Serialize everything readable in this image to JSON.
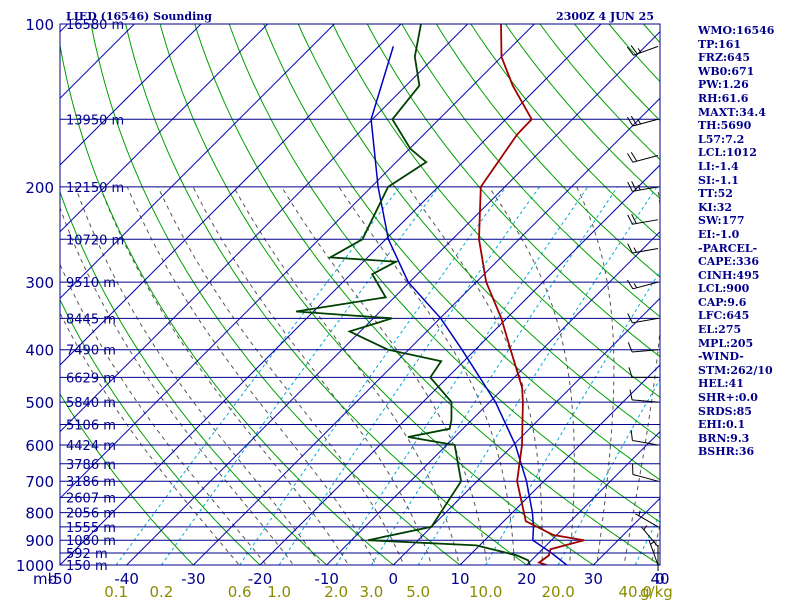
{
  "title_left": "LIED (16546) Sounding",
  "title_right": "2300Z  4 JUN 25",
  "pressure_unit_label": "mb",
  "mixing_ratio_unit": "g/kg",
  "colors": {
    "frame": "#00008b",
    "isobar": "#00008b",
    "isotherm": "#0000b0",
    "dry_adiabat": "#00a000",
    "moist_adiabat": "#555555",
    "mixing_ratio": "#00a8d8",
    "temperature": "#a00000",
    "dewpoint": "#004000",
    "parcel": "#0000c0",
    "wind": "#000000"
  },
  "indices": [
    "WMO:16546",
    "TP:161",
    "FRZ:645",
    "WB0:671",
    "PW:1.26",
    "RH:61.6",
    "MAXT:34.4",
    "TH:5690",
    "L57:7.2",
    "LCL:1012",
    "LI:-1.4",
    "SI:-1.1",
    "TT:52",
    "KI:32",
    "SW:177",
    "EI:-1.0",
    "-PARCEL-",
    "CAPE:336",
    "CINH:495",
    "LCL:900",
    "CAP:9.6",
    "LFC:645",
    "EL:275",
    "MPL:205",
    "-WIND-",
    "STM:262/10",
    "HEL:41",
    "SHR+:0.0",
    "SRDS:85",
    "EHI:0.1",
    "BRN:9.3",
    "BSHR:36"
  ],
  "chart_data": {
    "type": "line",
    "pressure_labels": [
      "100",
      "200",
      "300",
      "400",
      "500",
      "600",
      "700",
      "800",
      "900",
      "1000"
    ],
    "pressure_levels": [
      100,
      200,
      300,
      400,
      500,
      600,
      700,
      800,
      900,
      1000
    ],
    "height_levels": [
      {
        "p": 100,
        "h": "16580 m"
      },
      {
        "p": 150,
        "h": "13950 m"
      },
      {
        "p": 200,
        "h": "12150 m"
      },
      {
        "p": 250,
        "h": "10720 m"
      },
      {
        "p": 300,
        "h": "9510 m"
      },
      {
        "p": 350,
        "h": "8445 m"
      },
      {
        "p": 400,
        "h": "7490 m"
      },
      {
        "p": 450,
        "h": "6629 m"
      },
      {
        "p": 500,
        "h": "5840 m"
      },
      {
        "p": 550,
        "h": "5106 m"
      },
      {
        "p": 600,
        "h": "4424 m"
      },
      {
        "p": 650,
        "h": "3786 m"
      },
      {
        "p": 700,
        "h": "3186 m"
      },
      {
        "p": 750,
        "h": "2607 m"
      },
      {
        "p": 800,
        "h": "2056 m"
      },
      {
        "p": 850,
        "h": "1555 m"
      },
      {
        "p": 900,
        "h": "1080 m"
      },
      {
        "p": 950,
        "h": "592 m"
      },
      {
        "p": 1000,
        "h": "150 m"
      }
    ],
    "temperature_labels": [
      "-50",
      "-40",
      "-30",
      "-20",
      "-10",
      "0",
      "10",
      "20",
      "30",
      "40",
      "0"
    ],
    "mixing_ratio_labels": [
      "0.1",
      "0.2",
      "0.6",
      "1.0",
      "2.0",
      "3.0",
      "5.0",
      "10.0",
      "20.0",
      "40.0"
    ],
    "mixing_ratio_values": [
      0.1,
      0.2,
      0.6,
      1.0,
      2.0,
      3.0,
      5.0,
      10.0,
      20.0,
      40.0
    ],
    "temperature_profile": [
      {
        "p": 1000,
        "t": 23
      },
      {
        "p": 990,
        "t": 21.5
      },
      {
        "p": 960,
        "t": 21.9
      },
      {
        "p": 935,
        "t": 21.2
      },
      {
        "p": 900,
        "t": 24.9
      },
      {
        "p": 880,
        "t": 19.5
      },
      {
        "p": 830,
        "t": 13.3
      },
      {
        "p": 700,
        "t": 6.0
      },
      {
        "p": 600,
        "t": 1.3
      },
      {
        "p": 500,
        "t": -5.0
      },
      {
        "p": 470,
        "t": -7.3
      },
      {
        "p": 400,
        "t": -14.7
      },
      {
        "p": 350,
        "t": -20.8
      },
      {
        "p": 300,
        "t": -28.5
      },
      {
        "p": 250,
        "t": -36.0
      },
      {
        "p": 200,
        "t": -43.6
      },
      {
        "p": 160,
        "t": -46.0
      },
      {
        "p": 150,
        "t": -46.1
      },
      {
        "p": 130,
        "t": -54.0
      },
      {
        "p": 115,
        "t": -60.0
      },
      {
        "p": 100,
        "t": -65.0
      }
    ],
    "dewpoint_profile": [
      {
        "p": 1000,
        "td": 20.5
      },
      {
        "p": 980,
        "td": 19.5
      },
      {
        "p": 960,
        "td": 17.1
      },
      {
        "p": 920,
        "td": 9.5
      },
      {
        "p": 900,
        "td": -7.5
      },
      {
        "p": 850,
        "td": 0.0
      },
      {
        "p": 700,
        "td": -2.4
      },
      {
        "p": 600,
        "td": -8.8
      },
      {
        "p": 580,
        "td": -17.0
      },
      {
        "p": 560,
        "td": -12.0
      },
      {
        "p": 540,
        "td": -13.0
      },
      {
        "p": 500,
        "td": -15.7
      },
      {
        "p": 450,
        "td": -22.6
      },
      {
        "p": 420,
        "td": -23.4
      },
      {
        "p": 400,
        "td": -33.1
      },
      {
        "p": 370,
        "td": -41.6
      },
      {
        "p": 350,
        "td": -37.2
      },
      {
        "p": 340,
        "td": -52.6
      },
      {
        "p": 320,
        "td": -41.3
      },
      {
        "p": 290,
        "td": -46.8
      },
      {
        "p": 275,
        "td": -45.1
      },
      {
        "p": 270,
        "td": -55.6
      },
      {
        "p": 250,
        "td": -53.5
      },
      {
        "p": 200,
        "td": -57.5
      },
      {
        "p": 180,
        "td": -55.5
      },
      {
        "p": 170,
        "td": -59.9
      },
      {
        "p": 150,
        "td": -67.0
      },
      {
        "p": 130,
        "td": -68.0
      },
      {
        "p": 115,
        "td": -73.0
      },
      {
        "p": 100,
        "td": -77.0
      }
    ],
    "parcel_profile": [
      {
        "p": 1000,
        "t": 26.0
      },
      {
        "p": 950,
        "t": 21.9
      },
      {
        "p": 900,
        "t": 17.2
      },
      {
        "p": 850,
        "t": 15.3
      },
      {
        "p": 800,
        "t": 13.0
      },
      {
        "p": 700,
        "t": 7.4
      },
      {
        "p": 600,
        "t": 0.3
      },
      {
        "p": 500,
        "t": -9.1
      },
      {
        "p": 400,
        "t": -22.0
      },
      {
        "p": 350,
        "t": -29.9
      },
      {
        "p": 300,
        "t": -40.2
      },
      {
        "p": 250,
        "t": -49.6
      },
      {
        "p": 200,
        "t": -59.0
      },
      {
        "p": 150,
        "t": -70.2
      },
      {
        "p": 110,
        "t": -77.8
      }
    ],
    "winds": [
      {
        "p": 110,
        "dir": 250,
        "spd": 25
      },
      {
        "p": 150,
        "dir": 255,
        "spd": 25
      },
      {
        "p": 175,
        "dir": 255,
        "spd": 20
      },
      {
        "p": 200,
        "dir": 260,
        "spd": 25
      },
      {
        "p": 230,
        "dir": 260,
        "spd": 20
      },
      {
        "p": 260,
        "dir": 260,
        "spd": 15
      },
      {
        "p": 300,
        "dir": 255,
        "spd": 15
      },
      {
        "p": 350,
        "dir": 260,
        "spd": 10
      },
      {
        "p": 400,
        "dir": 265,
        "spd": 10
      },
      {
        "p": 450,
        "dir": 270,
        "spd": 10
      },
      {
        "p": 500,
        "dir": 275,
        "spd": 10
      },
      {
        "p": 600,
        "dir": 280,
        "spd": 10
      },
      {
        "p": 700,
        "dir": 285,
        "spd": 10
      },
      {
        "p": 850,
        "dir": 300,
        "spd": 5
      },
      {
        "p": 925,
        "dir": 320,
        "spd": 5
      },
      {
        "p": 1000,
        "dir": 340,
        "spd": 5
      }
    ],
    "x_range_temp_at_1000": [
      -50,
      40
    ],
    "y_range_pressure": [
      1000,
      100
    ],
    "skew": "skew-T log-P",
    "grid": true
  }
}
